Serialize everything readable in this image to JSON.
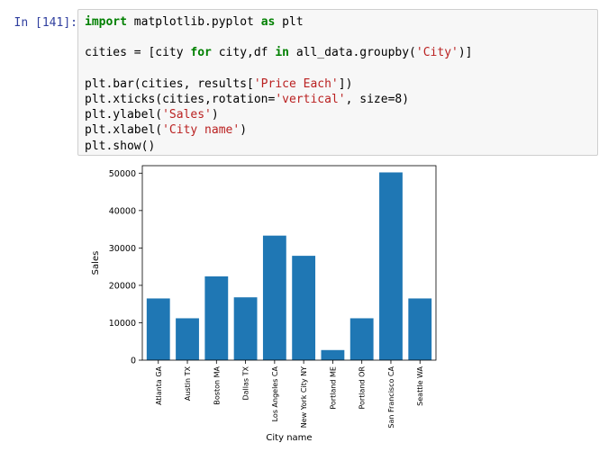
{
  "prompt": "In [141]:",
  "code_lines": [
    [
      {
        "t": "import",
        "c": "kw"
      },
      {
        "t": " matplotlib.pyplot ",
        "c": ""
      },
      {
        "t": "as",
        "c": "kw"
      },
      {
        "t": " plt",
        "c": ""
      }
    ],
    [],
    [
      {
        "t": "cities = [city ",
        "c": ""
      },
      {
        "t": "for",
        "c": "kw"
      },
      {
        "t": " city,df ",
        "c": ""
      },
      {
        "t": "in",
        "c": "kw"
      },
      {
        "t": " all_data.groupby(",
        "c": ""
      },
      {
        "t": "'City'",
        "c": "str"
      },
      {
        "t": ")]",
        "c": ""
      }
    ],
    [],
    [
      {
        "t": "plt.bar(cities, results[",
        "c": ""
      },
      {
        "t": "'Price Each'",
        "c": "str"
      },
      {
        "t": "])",
        "c": ""
      }
    ],
    [
      {
        "t": "plt.xticks(cities,rotation=",
        "c": ""
      },
      {
        "t": "'vertical'",
        "c": "str"
      },
      {
        "t": ", size=8)",
        "c": ""
      }
    ],
    [
      {
        "t": "plt.ylabel(",
        "c": ""
      },
      {
        "t": "'Sales'",
        "c": "str"
      },
      {
        "t": ")",
        "c": ""
      }
    ],
    [
      {
        "t": "plt.xlabel(",
        "c": ""
      },
      {
        "t": "'City name'",
        "c": "str"
      },
      {
        "t": ")",
        "c": ""
      }
    ],
    [
      {
        "t": "plt.show()",
        "c": ""
      }
    ]
  ],
  "chart_data": {
    "type": "bar",
    "categories": [
      "Atlanta GA",
      "Austin TX",
      "Boston MA",
      "Dallas TX",
      "Los Angeles CA",
      "New York City NY",
      "Portland ME",
      "Portland OR",
      "San Francisco CA",
      "Seattle WA"
    ],
    "values": [
      16500,
      11200,
      22400,
      16800,
      33300,
      27900,
      2700,
      11200,
      50200,
      16500
    ],
    "xlabel": "City name",
    "ylabel": "Sales",
    "ylim": [
      0,
      52000
    ],
    "yticks": [
      0,
      10000,
      20000,
      30000,
      40000,
      50000
    ],
    "bar_color": "#1f77b4"
  }
}
